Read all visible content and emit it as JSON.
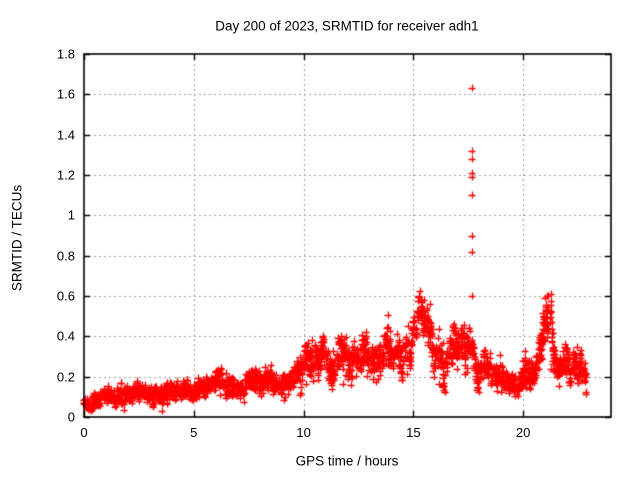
{
  "chart_data": {
    "type": "scatter",
    "title": "Day 200 of 2023, SRMTID for receiver adh1",
    "xlabel": "GPS time / hours",
    "ylabel": "SRMTID / TECUs",
    "xlim": [
      0,
      24
    ],
    "ylim": [
      0,
      1.8
    ],
    "xticks": [
      0,
      5,
      10,
      15,
      20
    ],
    "yticks": [
      0,
      0.2,
      0.4,
      0.6,
      0.8,
      1,
      1.2,
      1.4,
      1.6,
      1.8
    ],
    "grid": "dashed",
    "legend": "none",
    "marker": "plus-cross",
    "marker_color": "#ff0000",
    "grid_color": "#a0a0a0",
    "axis_color": "#000000",
    "series_description": "Dense multi-satellite SRMTID scatter, one column of values per epoch from hour 0 to ~22.9",
    "epoch_step_hours": 0.05,
    "t_start": 0,
    "t_end": 22.9,
    "seed": 20231200,
    "envelope": [
      [
        0.0,
        0.08,
        0.04
      ],
      [
        0.5,
        0.1,
        0.05
      ],
      [
        1.0,
        0.1,
        0.05
      ],
      [
        1.5,
        0.12,
        0.05
      ],
      [
        2.0,
        0.13,
        0.06
      ],
      [
        2.5,
        0.12,
        0.05
      ],
      [
        3.0,
        0.12,
        0.05
      ],
      [
        3.5,
        0.13,
        0.06
      ],
      [
        4.0,
        0.15,
        0.06
      ],
      [
        4.5,
        0.14,
        0.05
      ],
      [
        5.0,
        0.15,
        0.05
      ],
      [
        5.5,
        0.16,
        0.06
      ],
      [
        6.0,
        0.17,
        0.06
      ],
      [
        6.5,
        0.17,
        0.07
      ],
      [
        7.0,
        0.16,
        0.07
      ],
      [
        7.5,
        0.17,
        0.07
      ],
      [
        8.0,
        0.18,
        0.08
      ],
      [
        8.5,
        0.17,
        0.07
      ],
      [
        9.0,
        0.13,
        0.06
      ],
      [
        9.5,
        0.18,
        0.08
      ],
      [
        10.0,
        0.25,
        0.1
      ],
      [
        10.45,
        0.33,
        0.14
      ],
      [
        10.8,
        0.3,
        0.12
      ],
      [
        11.15,
        0.32,
        0.12
      ],
      [
        11.5,
        0.28,
        0.1
      ],
      [
        12.0,
        0.36,
        0.14
      ],
      [
        12.4,
        0.3,
        0.11
      ],
      [
        12.8,
        0.33,
        0.12
      ],
      [
        13.3,
        0.24,
        0.1
      ],
      [
        13.8,
        0.3,
        0.12
      ],
      [
        14.3,
        0.28,
        0.1
      ],
      [
        14.8,
        0.33,
        0.12
      ],
      [
        15.3,
        0.47,
        0.13
      ],
      [
        15.7,
        0.44,
        0.13
      ],
      [
        16.1,
        0.3,
        0.13
      ],
      [
        16.45,
        0.2,
        0.11
      ],
      [
        16.8,
        0.35,
        0.12
      ],
      [
        17.2,
        0.3,
        0.11
      ],
      [
        17.7,
        0.33,
        0.13
      ],
      [
        18.1,
        0.3,
        0.11
      ],
      [
        18.6,
        0.22,
        0.09
      ],
      [
        19.1,
        0.18,
        0.08
      ],
      [
        19.6,
        0.15,
        0.08
      ],
      [
        20.1,
        0.2,
        0.1
      ],
      [
        20.6,
        0.25,
        0.1
      ],
      [
        21.1,
        0.4,
        0.18
      ],
      [
        21.5,
        0.28,
        0.1
      ],
      [
        22.0,
        0.3,
        0.1
      ],
      [
        22.4,
        0.26,
        0.11
      ],
      [
        22.9,
        0.18,
        0.09
      ]
    ],
    "outliers": {
      "x": 17.68,
      "values": [
        0.6,
        0.82,
        0.9,
        1.1,
        1.19,
        1.21,
        1.28,
        1.32,
        1.63
      ]
    }
  }
}
